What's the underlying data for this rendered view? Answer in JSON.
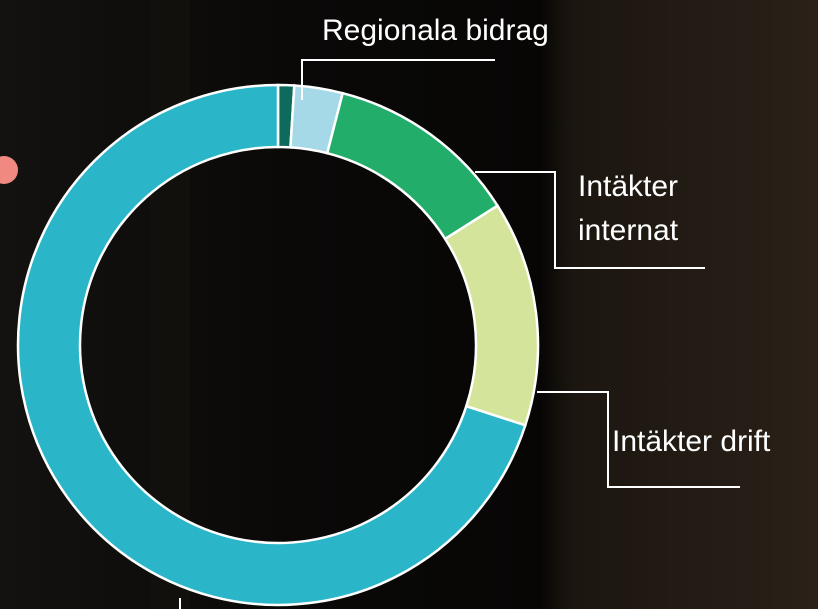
{
  "chart_data": {
    "type": "donut",
    "categories": [
      null,
      "Regionala bidrag",
      "Intäkter internat",
      "Intäkter drift",
      null
    ],
    "values": [
      1,
      3,
      12,
      14,
      70
    ],
    "colors": [
      "#0e6b5c",
      "#a6d9e8",
      "#23ad6b",
      "#d4e49a",
      "#2bb5c9"
    ]
  }
}
